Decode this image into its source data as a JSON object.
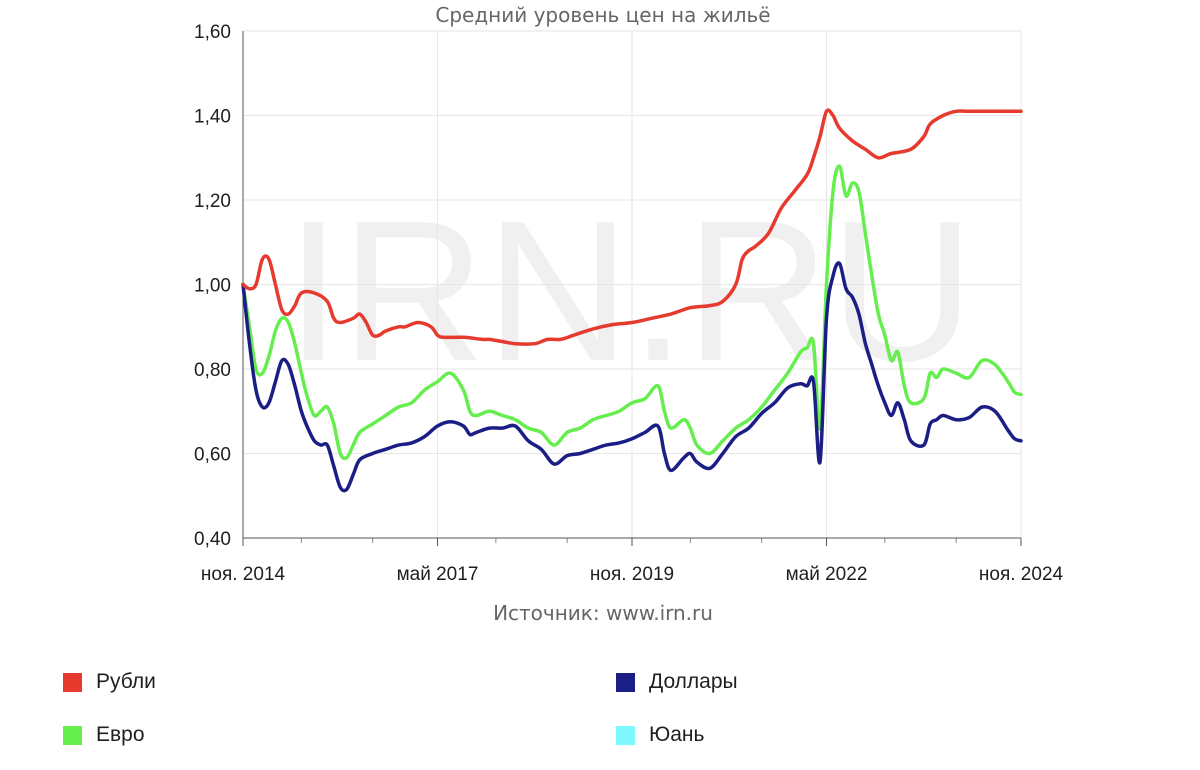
{
  "chart_data": {
    "type": "line",
    "title": "Средний уровень цен на жильё",
    "source": "Источник: www.irn.ru",
    "watermark": "IRN.RU",
    "x_range": [
      "2014-11",
      "2024-11"
    ],
    "x_ticks": [
      {
        "date": "2014-11",
        "label": "ноя. 2014"
      },
      {
        "date": "2017-05",
        "label": "май 2017"
      },
      {
        "date": "2019-11",
        "label": "ноя. 2019"
      },
      {
        "date": "2022-05",
        "label": "май 2022"
      },
      {
        "date": "2024-11",
        "label": "ноя. 2024"
      }
    ],
    "minor_x_ticks": [
      "2015-08",
      "2016-07",
      "2018-02",
      "2019-01",
      "2020-08",
      "2021-07",
      "2023-02",
      "2024-01"
    ],
    "ylim": [
      0.4,
      1.6
    ],
    "y_ticks": [
      {
        "value": 0.4,
        "label": "0,40"
      },
      {
        "value": 0.6,
        "label": "0,60"
      },
      {
        "value": 0.8,
        "label": "0,80"
      },
      {
        "value": 1.0,
        "label": "1,00"
      },
      {
        "value": 1.2,
        "label": "1,20"
      },
      {
        "value": 1.4,
        "label": "1,40"
      },
      {
        "value": 1.6,
        "label": "1,60"
      }
    ],
    "grid": true,
    "legend_position": "bottom",
    "series": [
      {
        "name": "Рубли",
        "color": "#e63a2e",
        "points": [
          [
            "2014-11",
            1.0
          ],
          [
            "2014-12",
            0.99
          ],
          [
            "2015-01",
            1.0
          ],
          [
            "2015-02",
            1.06
          ],
          [
            "2015-03",
            1.06
          ],
          [
            "2015-04",
            1.0
          ],
          [
            "2015-05",
            0.94
          ],
          [
            "2015-06",
            0.93
          ],
          [
            "2015-07",
            0.95
          ],
          [
            "2015-08",
            0.98
          ],
          [
            "2015-10",
            0.98
          ],
          [
            "2015-12",
            0.96
          ],
          [
            "2016-01",
            0.92
          ],
          [
            "2016-02",
            0.91
          ],
          [
            "2016-04",
            0.92
          ],
          [
            "2016-05",
            0.93
          ],
          [
            "2016-06",
            0.91
          ],
          [
            "2016-07",
            0.88
          ],
          [
            "2016-08",
            0.88
          ],
          [
            "2016-09",
            0.89
          ],
          [
            "2016-11",
            0.9
          ],
          [
            "2016-12",
            0.9
          ],
          [
            "2017-02",
            0.91
          ],
          [
            "2017-04",
            0.9
          ],
          [
            "2017-05",
            0.88
          ],
          [
            "2017-06",
            0.875
          ],
          [
            "2017-09",
            0.875
          ],
          [
            "2017-12",
            0.87
          ],
          [
            "2018-01",
            0.87
          ],
          [
            "2018-03",
            0.865
          ],
          [
            "2018-05",
            0.86
          ],
          [
            "2018-08",
            0.86
          ],
          [
            "2018-10",
            0.87
          ],
          [
            "2018-12",
            0.87
          ],
          [
            "2019-02",
            0.88
          ],
          [
            "2019-05",
            0.895
          ],
          [
            "2019-08",
            0.905
          ],
          [
            "2019-11",
            0.91
          ],
          [
            "2020-02",
            0.92
          ],
          [
            "2020-05",
            0.93
          ],
          [
            "2020-08",
            0.945
          ],
          [
            "2020-11",
            0.95
          ],
          [
            "2021-01",
            0.96
          ],
          [
            "2021-03",
            1.0
          ],
          [
            "2021-04",
            1.06
          ],
          [
            "2021-05",
            1.08
          ],
          [
            "2021-06",
            1.09
          ],
          [
            "2021-08",
            1.12
          ],
          [
            "2021-10",
            1.18
          ],
          [
            "2021-12",
            1.22
          ],
          [
            "2022-02",
            1.26
          ],
          [
            "2022-03",
            1.3
          ],
          [
            "2022-04",
            1.35
          ],
          [
            "2022-05",
            1.41
          ],
          [
            "2022-06",
            1.4
          ],
          [
            "2022-07",
            1.37
          ],
          [
            "2022-09",
            1.34
          ],
          [
            "2022-11",
            1.32
          ],
          [
            "2023-01",
            1.3
          ],
          [
            "2023-03",
            1.31
          ],
          [
            "2023-06",
            1.32
          ],
          [
            "2023-08",
            1.35
          ],
          [
            "2023-09",
            1.38
          ],
          [
            "2023-11",
            1.4
          ],
          [
            "2024-01",
            1.41
          ],
          [
            "2024-03",
            1.41
          ],
          [
            "2024-06",
            1.41
          ],
          [
            "2024-11",
            1.41
          ]
        ]
      },
      {
        "name": "Евро",
        "color": "#66ee4f",
        "points": [
          [
            "2014-11",
            1.0
          ],
          [
            "2014-12",
            0.9
          ],
          [
            "2015-01",
            0.8
          ],
          [
            "2015-02",
            0.79
          ],
          [
            "2015-03",
            0.83
          ],
          [
            "2015-04",
            0.89
          ],
          [
            "2015-05",
            0.92
          ],
          [
            "2015-06",
            0.91
          ],
          [
            "2015-07",
            0.86
          ],
          [
            "2015-08",
            0.79
          ],
          [
            "2015-09",
            0.73
          ],
          [
            "2015-10",
            0.69
          ],
          [
            "2015-11",
            0.7
          ],
          [
            "2015-12",
            0.71
          ],
          [
            "2016-01",
            0.67
          ],
          [
            "2016-02",
            0.6
          ],
          [
            "2016-03",
            0.59
          ],
          [
            "2016-04",
            0.62
          ],
          [
            "2016-05",
            0.65
          ],
          [
            "2016-07",
            0.67
          ],
          [
            "2016-09",
            0.69
          ],
          [
            "2016-11",
            0.71
          ],
          [
            "2017-01",
            0.72
          ],
          [
            "2017-03",
            0.75
          ],
          [
            "2017-05",
            0.77
          ],
          [
            "2017-07",
            0.79
          ],
          [
            "2017-09",
            0.75
          ],
          [
            "2017-10",
            0.7
          ],
          [
            "2017-11",
            0.69
          ],
          [
            "2018-01",
            0.7
          ],
          [
            "2018-03",
            0.69
          ],
          [
            "2018-05",
            0.68
          ],
          [
            "2018-07",
            0.66
          ],
          [
            "2018-09",
            0.65
          ],
          [
            "2018-11",
            0.62
          ],
          [
            "2019-01",
            0.65
          ],
          [
            "2019-03",
            0.66
          ],
          [
            "2019-05",
            0.68
          ],
          [
            "2019-07",
            0.69
          ],
          [
            "2019-09",
            0.7
          ],
          [
            "2019-11",
            0.72
          ],
          [
            "2020-01",
            0.73
          ],
          [
            "2020-03",
            0.76
          ],
          [
            "2020-04",
            0.7
          ],
          [
            "2020-05",
            0.66
          ],
          [
            "2020-07",
            0.68
          ],
          [
            "2020-08",
            0.66
          ],
          [
            "2020-09",
            0.62
          ],
          [
            "2020-11",
            0.6
          ],
          [
            "2021-01",
            0.63
          ],
          [
            "2021-03",
            0.66
          ],
          [
            "2021-05",
            0.68
          ],
          [
            "2021-07",
            0.71
          ],
          [
            "2021-09",
            0.75
          ],
          [
            "2021-11",
            0.79
          ],
          [
            "2022-01",
            0.84
          ],
          [
            "2022-02",
            0.85
          ],
          [
            "2022-03",
            0.86
          ],
          [
            "2022-04",
            0.66
          ],
          [
            "2022-05",
            1.0
          ],
          [
            "2022-06",
            1.22
          ],
          [
            "2022-07",
            1.28
          ],
          [
            "2022-08",
            1.21
          ],
          [
            "2022-09",
            1.24
          ],
          [
            "2022-10",
            1.22
          ],
          [
            "2022-11",
            1.12
          ],
          [
            "2022-12",
            1.02
          ],
          [
            "2023-01",
            0.93
          ],
          [
            "2023-02",
            0.88
          ],
          [
            "2023-03",
            0.82
          ],
          [
            "2023-04",
            0.84
          ],
          [
            "2023-05",
            0.76
          ],
          [
            "2023-06",
            0.72
          ],
          [
            "2023-08",
            0.73
          ],
          [
            "2023-09",
            0.79
          ],
          [
            "2023-10",
            0.78
          ],
          [
            "2023-11",
            0.8
          ],
          [
            "2024-01",
            0.79
          ],
          [
            "2024-03",
            0.78
          ],
          [
            "2024-05",
            0.82
          ],
          [
            "2024-07",
            0.81
          ],
          [
            "2024-09",
            0.77
          ],
          [
            "2024-10",
            0.745
          ],
          [
            "2024-11",
            0.74
          ]
        ]
      },
      {
        "name": "Доллары",
        "color": "#1b1e84",
        "points": [
          [
            "2014-11",
            1.0
          ],
          [
            "2014-12",
            0.86
          ],
          [
            "2015-01",
            0.75
          ],
          [
            "2015-02",
            0.71
          ],
          [
            "2015-03",
            0.72
          ],
          [
            "2015-04",
            0.77
          ],
          [
            "2015-05",
            0.82
          ],
          [
            "2015-06",
            0.81
          ],
          [
            "2015-07",
            0.76
          ],
          [
            "2015-08",
            0.7
          ],
          [
            "2015-09",
            0.66
          ],
          [
            "2015-10",
            0.63
          ],
          [
            "2015-11",
            0.62
          ],
          [
            "2015-12",
            0.62
          ],
          [
            "2016-01",
            0.57
          ],
          [
            "2016-02",
            0.52
          ],
          [
            "2016-03",
            0.515
          ],
          [
            "2016-04",
            0.55
          ],
          [
            "2016-05",
            0.585
          ],
          [
            "2016-07",
            0.6
          ],
          [
            "2016-09",
            0.61
          ],
          [
            "2016-11",
            0.62
          ],
          [
            "2017-01",
            0.625
          ],
          [
            "2017-03",
            0.64
          ],
          [
            "2017-05",
            0.665
          ],
          [
            "2017-07",
            0.675
          ],
          [
            "2017-09",
            0.665
          ],
          [
            "2017-10",
            0.645
          ],
          [
            "2017-11",
            0.65
          ],
          [
            "2018-01",
            0.66
          ],
          [
            "2018-03",
            0.66
          ],
          [
            "2018-05",
            0.665
          ],
          [
            "2018-07",
            0.63
          ],
          [
            "2018-09",
            0.61
          ],
          [
            "2018-11",
            0.575
          ],
          [
            "2019-01",
            0.595
          ],
          [
            "2019-03",
            0.6
          ],
          [
            "2019-05",
            0.61
          ],
          [
            "2019-07",
            0.62
          ],
          [
            "2019-09",
            0.625
          ],
          [
            "2019-11",
            0.635
          ],
          [
            "2020-01",
            0.65
          ],
          [
            "2020-03",
            0.665
          ],
          [
            "2020-04",
            0.6
          ],
          [
            "2020-05",
            0.56
          ],
          [
            "2020-07",
            0.59
          ],
          [
            "2020-08",
            0.6
          ],
          [
            "2020-09",
            0.58
          ],
          [
            "2020-11",
            0.565
          ],
          [
            "2021-01",
            0.6
          ],
          [
            "2021-03",
            0.64
          ],
          [
            "2021-05",
            0.66
          ],
          [
            "2021-07",
            0.695
          ],
          [
            "2021-09",
            0.72
          ],
          [
            "2021-11",
            0.755
          ],
          [
            "2022-01",
            0.765
          ],
          [
            "2022-02",
            0.76
          ],
          [
            "2022-03",
            0.77
          ],
          [
            "2022-04",
            0.58
          ],
          [
            "2022-05",
            0.92
          ],
          [
            "2022-06",
            1.02
          ],
          [
            "2022-07",
            1.05
          ],
          [
            "2022-08",
            0.99
          ],
          [
            "2022-09",
            0.97
          ],
          [
            "2022-10",
            0.93
          ],
          [
            "2022-11",
            0.86
          ],
          [
            "2022-12",
            0.81
          ],
          [
            "2023-01",
            0.76
          ],
          [
            "2023-02",
            0.72
          ],
          [
            "2023-03",
            0.69
          ],
          [
            "2023-04",
            0.72
          ],
          [
            "2023-05",
            0.68
          ],
          [
            "2023-06",
            0.63
          ],
          [
            "2023-08",
            0.62
          ],
          [
            "2023-09",
            0.67
          ],
          [
            "2023-10",
            0.68
          ],
          [
            "2023-11",
            0.69
          ],
          [
            "2024-01",
            0.68
          ],
          [
            "2024-03",
            0.685
          ],
          [
            "2024-05",
            0.71
          ],
          [
            "2024-07",
            0.7
          ],
          [
            "2024-09",
            0.655
          ],
          [
            "2024-10",
            0.635
          ],
          [
            "2024-11",
            0.63
          ]
        ]
      },
      {
        "name": "Юань",
        "color": "#7ef9ff",
        "points": []
      }
    ]
  }
}
